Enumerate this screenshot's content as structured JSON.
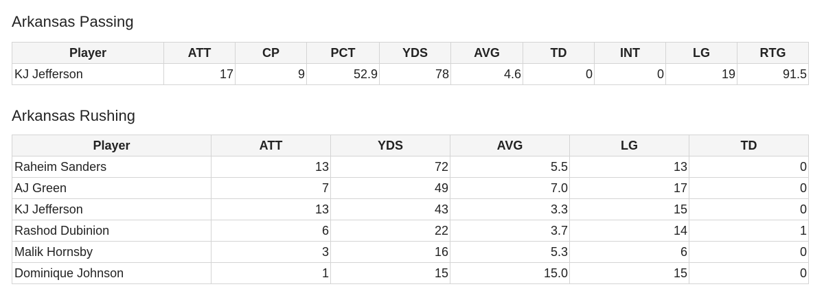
{
  "passing": {
    "title": "Arkansas Passing",
    "headers": [
      "Player",
      "ATT",
      "CP",
      "PCT",
      "YDS",
      "AVG",
      "TD",
      "INT",
      "LG",
      "RTG"
    ],
    "rows": [
      [
        "KJ Jefferson",
        "17",
        "9",
        "52.9",
        "78",
        "4.6",
        "0",
        "0",
        "19",
        "91.5"
      ]
    ]
  },
  "rushing": {
    "title": "Arkansas Rushing",
    "headers": [
      "Player",
      "ATT",
      "YDS",
      "AVG",
      "LG",
      "TD"
    ],
    "rows": [
      [
        "Raheim Sanders",
        "13",
        "72",
        "5.5",
        "13",
        "0"
      ],
      [
        "AJ Green",
        "7",
        "49",
        "7.0",
        "17",
        "0"
      ],
      [
        "KJ Jefferson",
        "13",
        "43",
        "3.3",
        "15",
        "0"
      ],
      [
        "Rashod Dubinion",
        "6",
        "22",
        "3.7",
        "14",
        "1"
      ],
      [
        "Malik Hornsby",
        "3",
        "16",
        "5.3",
        "6",
        "0"
      ],
      [
        "Dominique Johnson",
        "1",
        "15",
        "15.0",
        "15",
        "0"
      ]
    ]
  }
}
